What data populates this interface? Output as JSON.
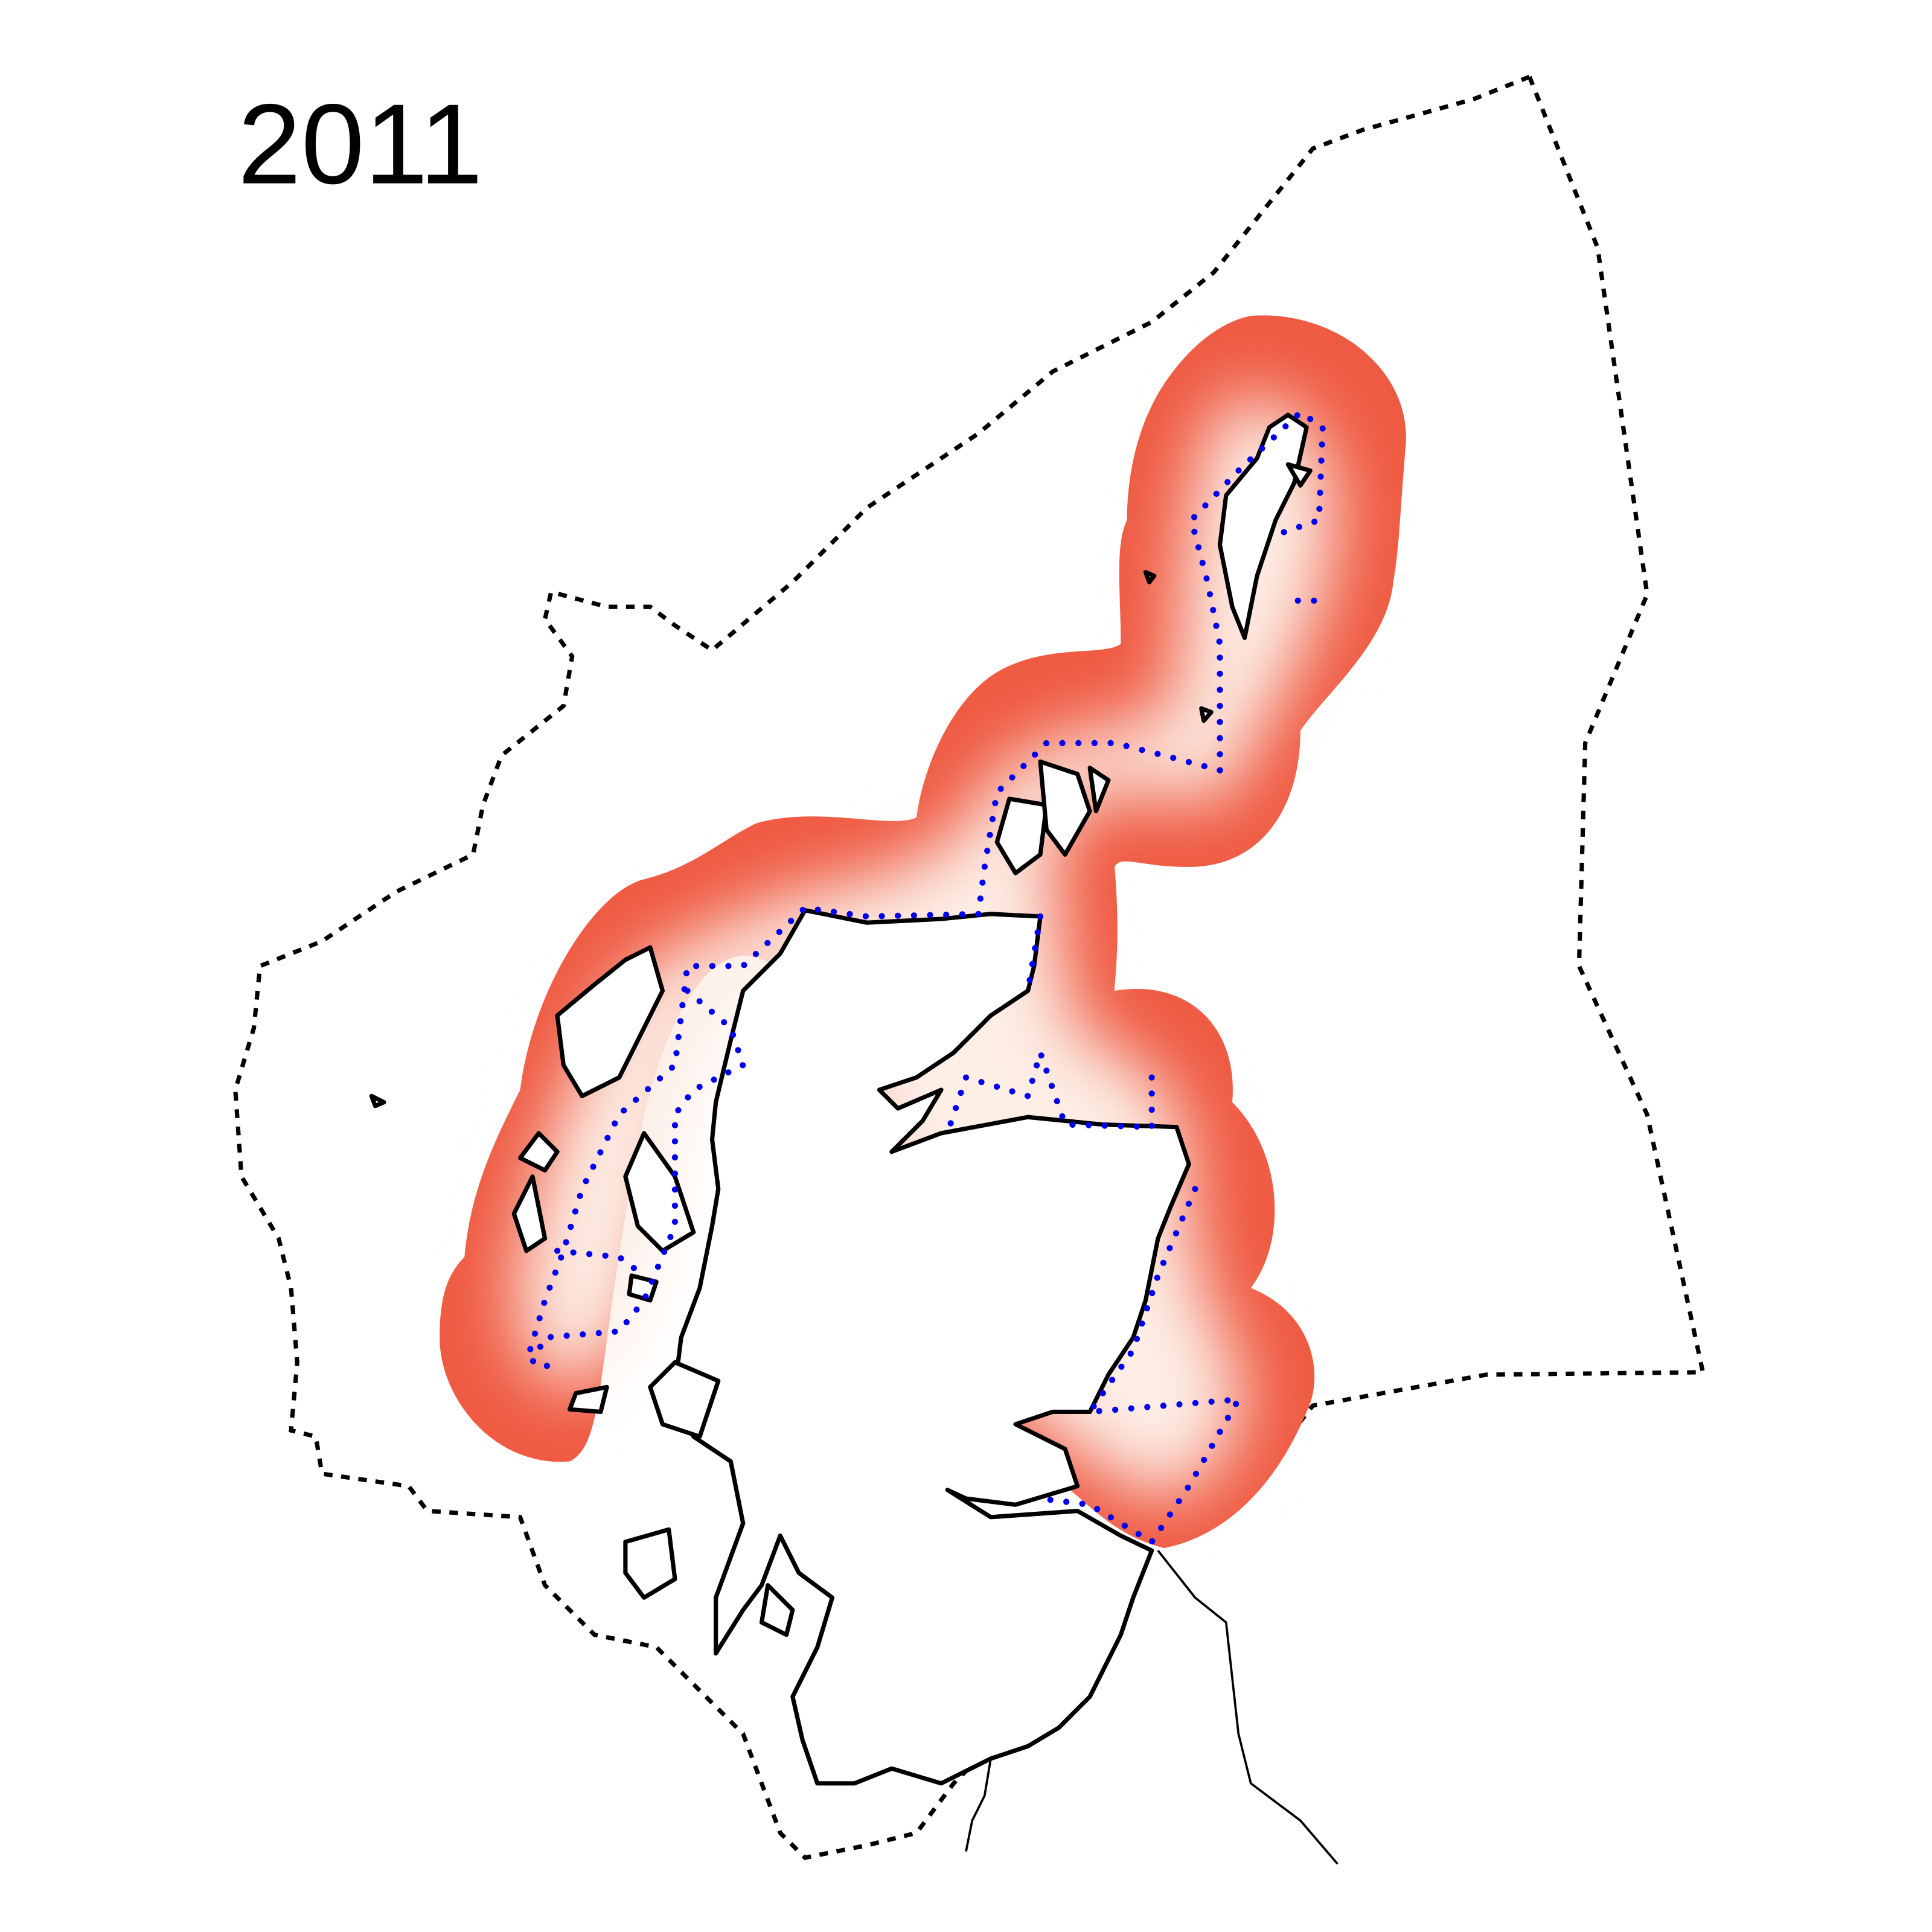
{
  "title": "2011"
}
